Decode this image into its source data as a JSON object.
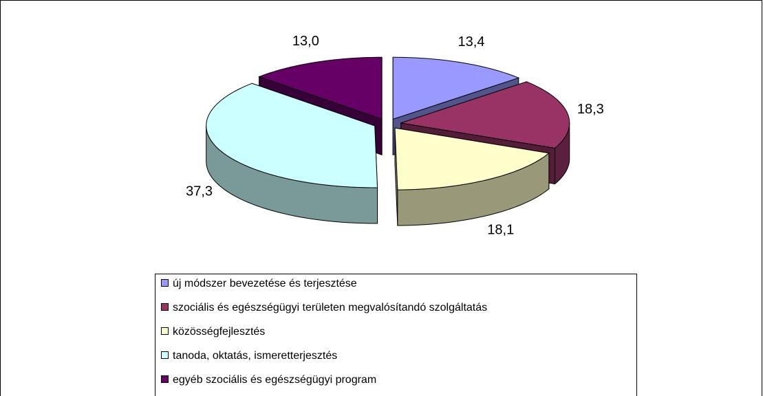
{
  "chart_data": {
    "type": "pie3d",
    "categories": [
      "új módszer bevezetése és terjesztése",
      "szociális és egészségügyi területen megvalósítandó szolgáltatás",
      "közösségfejlesztés",
      "tanoda, oktatás, ismeretterjesztés",
      "egyéb szociális és egészségügyi program"
    ],
    "values": [
      13.4,
      18.3,
      18.1,
      37.3,
      13.0
    ],
    "value_labels": [
      "13,4",
      "18,3",
      "18,1",
      "37,3",
      "13,0"
    ],
    "colors": [
      "#9999ff",
      "#993366",
      "#ffffcc",
      "#ccffff",
      "#660066"
    ],
    "legend": "bottom"
  }
}
